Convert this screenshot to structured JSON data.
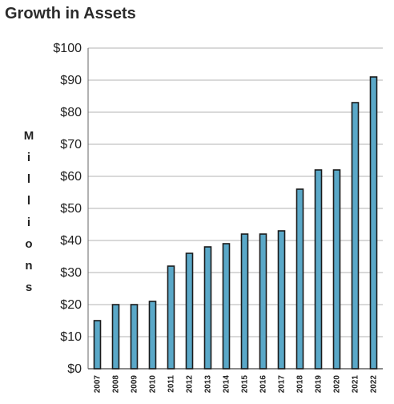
{
  "chart_data": {
    "type": "bar",
    "title": "Growth in Assets",
    "ylabel": "Millions",
    "xlabel": "",
    "categories": [
      "2007",
      "2008",
      "2009",
      "2010",
      "2011",
      "2012",
      "2013",
      "2014",
      "2015",
      "2016",
      "2017",
      "2018",
      "2019",
      "2020",
      "2021",
      "2022"
    ],
    "values": [
      15,
      20,
      20,
      21,
      32,
      36,
      38,
      39,
      42,
      42,
      43,
      56,
      62,
      62,
      83,
      91
    ],
    "ylim": [
      0,
      100
    ],
    "yticks": [
      "$0",
      "$10",
      "$20",
      "$30",
      "$40",
      "$50",
      "$60",
      "$70",
      "$80",
      "$90",
      "$100"
    ],
    "grid": true,
    "bar_color": "#5aa8c8",
    "bar_edge_color": "#1a1a1a"
  }
}
